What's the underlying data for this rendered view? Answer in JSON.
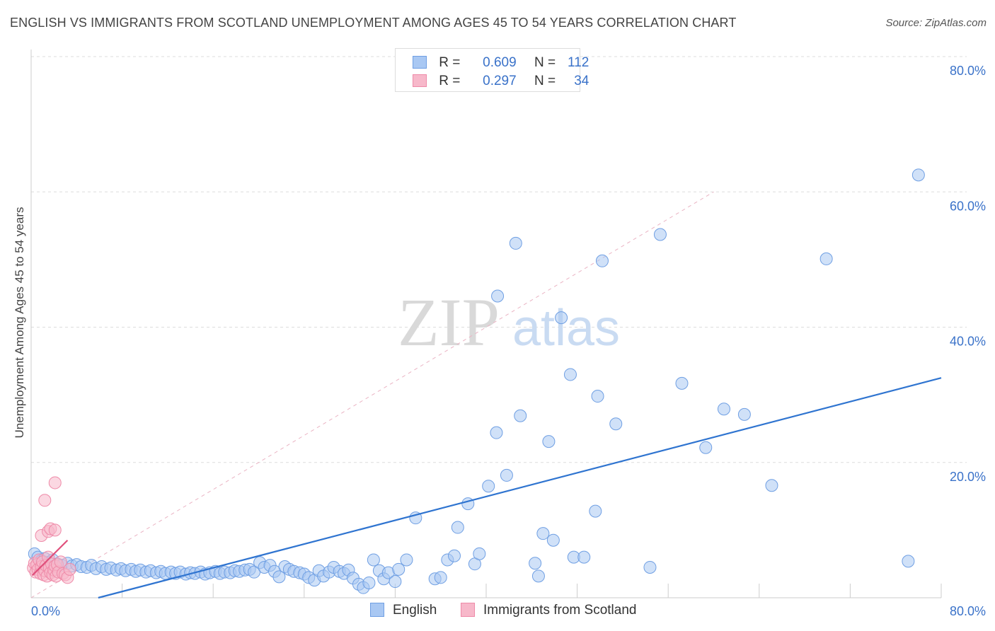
{
  "title": "ENGLISH VS IMMIGRANTS FROM SCOTLAND UNEMPLOYMENT AMONG AGES 45 TO 54 YEARS CORRELATION CHART",
  "source": "Source: ZipAtlas.com",
  "watermark": {
    "zip": "ZIP",
    "atlas": "atlas"
  },
  "legend": {
    "r_label": "R =",
    "n_label": "N =",
    "english": {
      "r": "0.609",
      "n": "112"
    },
    "scotland": {
      "r": "0.297",
      "n": "34"
    }
  },
  "colors": {
    "english_fill": "#a9c8f3",
    "english_stroke": "#6f9fe3",
    "english_line": "#2f74d0",
    "scotland_fill": "#f7b8ca",
    "scotland_stroke": "#ee8aa8",
    "scotland_line": "#e0507c",
    "grid": "#dddddd",
    "tick_text": "#3a72c9"
  },
  "chart_data": {
    "type": "scatter",
    "title": "ENGLISH VS IMMIGRANTS FROM SCOTLAND UNEMPLOYMENT AMONG AGES 45 TO 54 YEARS CORRELATION CHART",
    "xlabel": "",
    "ylabel": "Unemployment Among Ages 45 to 54 years",
    "xlim": [
      0,
      80
    ],
    "ylim": [
      0,
      80
    ],
    "x_tick_labels": [
      "0.0%",
      "80.0%"
    ],
    "y_ticks": [
      20,
      40,
      60,
      80
    ],
    "y_tick_labels": [
      "20.0%",
      "40.0%",
      "60.0%",
      "80.0%"
    ],
    "grid": true,
    "legend_position": "top-center",
    "series": [
      {
        "name": "English",
        "r": 0.609,
        "n": 112,
        "trend": {
          "x": [
            5.9,
            80
          ],
          "y": [
            0,
            32.5
          ]
        },
        "points": [
          [
            0.3,
            6.5
          ],
          [
            0.6,
            6.0
          ],
          [
            0.9,
            5.5
          ],
          [
            1.2,
            5.8
          ],
          [
            1.5,
            5.2
          ],
          [
            1.9,
            5.6
          ],
          [
            2.3,
            5.0
          ],
          [
            2.7,
            4.8
          ],
          [
            3.2,
            5.1
          ],
          [
            3.6,
            4.7
          ],
          [
            4.0,
            4.9
          ],
          [
            4.4,
            4.6
          ],
          [
            4.9,
            4.5
          ],
          [
            5.3,
            4.8
          ],
          [
            5.7,
            4.3
          ],
          [
            6.2,
            4.6
          ],
          [
            6.6,
            4.2
          ],
          [
            7.0,
            4.4
          ],
          [
            7.5,
            4.1
          ],
          [
            7.9,
            4.3
          ],
          [
            8.3,
            4.0
          ],
          [
            8.8,
            4.2
          ],
          [
            9.2,
            3.9
          ],
          [
            9.6,
            4.1
          ],
          [
            10.1,
            3.8
          ],
          [
            10.5,
            4.0
          ],
          [
            11.0,
            3.7
          ],
          [
            11.4,
            3.9
          ],
          [
            11.8,
            3.6
          ],
          [
            12.3,
            3.8
          ],
          [
            12.7,
            3.6
          ],
          [
            13.1,
            3.8
          ],
          [
            13.6,
            3.5
          ],
          [
            14.0,
            3.7
          ],
          [
            14.4,
            3.6
          ],
          [
            14.9,
            3.8
          ],
          [
            15.3,
            3.5
          ],
          [
            15.7,
            3.7
          ],
          [
            16.2,
            3.9
          ],
          [
            16.6,
            3.6
          ],
          [
            17.0,
            3.8
          ],
          [
            17.5,
            3.7
          ],
          [
            17.9,
            4.0
          ],
          [
            18.3,
            3.9
          ],
          [
            18.8,
            4.1
          ],
          [
            19.2,
            4.2
          ],
          [
            19.6,
            3.8
          ],
          [
            20.1,
            5.2
          ],
          [
            20.5,
            4.5
          ],
          [
            21.0,
            4.8
          ],
          [
            21.4,
            3.9
          ],
          [
            21.8,
            3.1
          ],
          [
            22.3,
            4.6
          ],
          [
            22.7,
            4.2
          ],
          [
            23.1,
            3.9
          ],
          [
            23.6,
            3.7
          ],
          [
            24.0,
            3.5
          ],
          [
            24.4,
            3.0
          ],
          [
            24.9,
            2.6
          ],
          [
            25.3,
            4.0
          ],
          [
            25.7,
            3.2
          ],
          [
            26.2,
            3.8
          ],
          [
            26.6,
            4.5
          ],
          [
            27.1,
            3.9
          ],
          [
            27.5,
            3.6
          ],
          [
            27.9,
            4.1
          ],
          [
            28.3,
            2.9
          ],
          [
            28.8,
            2.0
          ],
          [
            29.2,
            1.5
          ],
          [
            29.7,
            2.2
          ],
          [
            30.1,
            5.6
          ],
          [
            30.6,
            4.0
          ],
          [
            31.0,
            2.8
          ],
          [
            31.4,
            3.7
          ],
          [
            32.0,
            2.4
          ],
          [
            32.3,
            4.2
          ],
          [
            33.0,
            5.6
          ],
          [
            33.8,
            11.8
          ],
          [
            35.5,
            2.8
          ],
          [
            36.0,
            3.0
          ],
          [
            36.6,
            5.6
          ],
          [
            37.2,
            6.2
          ],
          [
            37.5,
            10.4
          ],
          [
            38.4,
            13.9
          ],
          [
            39.0,
            5.0
          ],
          [
            39.4,
            6.5
          ],
          [
            40.2,
            16.5
          ],
          [
            40.9,
            24.4
          ],
          [
            41.0,
            44.6
          ],
          [
            41.8,
            18.1
          ],
          [
            42.6,
            52.4
          ],
          [
            43.0,
            26.9
          ],
          [
            44.3,
            5.1
          ],
          [
            44.6,
            3.2
          ],
          [
            45.0,
            9.5
          ],
          [
            45.5,
            23.1
          ],
          [
            45.9,
            8.5
          ],
          [
            46.6,
            41.4
          ],
          [
            47.4,
            33.0
          ],
          [
            47.7,
            6.0
          ],
          [
            48.6,
            6.0
          ],
          [
            49.6,
            12.8
          ],
          [
            49.8,
            29.8
          ],
          [
            50.2,
            49.8
          ],
          [
            51.4,
            25.7
          ],
          [
            54.4,
            4.5
          ],
          [
            55.3,
            53.7
          ],
          [
            57.2,
            31.7
          ],
          [
            59.3,
            22.2
          ],
          [
            60.9,
            27.9
          ],
          [
            62.7,
            27.1
          ],
          [
            65.1,
            16.6
          ],
          [
            69.9,
            50.1
          ],
          [
            77.1,
            5.4
          ],
          [
            78.0,
            62.5
          ]
        ]
      },
      {
        "name": "Immigrants from Scotland",
        "r": 0.297,
        "n": 34,
        "trend": {
          "x": [
            0.1,
            3.2
          ],
          "y": [
            3.3,
            8.5
          ]
        },
        "points": [
          [
            0.2,
            4.4
          ],
          [
            0.3,
            5.1
          ],
          [
            0.4,
            3.8
          ],
          [
            0.5,
            4.9
          ],
          [
            0.6,
            4.2
          ],
          [
            0.7,
            5.6
          ],
          [
            0.8,
            3.6
          ],
          [
            0.9,
            4.6
          ],
          [
            1.0,
            5.3
          ],
          [
            1.1,
            3.4
          ],
          [
            1.2,
            4.0
          ],
          [
            1.3,
            4.8
          ],
          [
            1.4,
            3.2
          ],
          [
            1.5,
            6.0
          ],
          [
            1.6,
            4.4
          ],
          [
            1.7,
            3.7
          ],
          [
            1.8,
            5.0
          ],
          [
            1.9,
            3.4
          ],
          [
            2.0,
            4.1
          ],
          [
            2.1,
            4.7
          ],
          [
            2.2,
            3.2
          ],
          [
            2.3,
            4.9
          ],
          [
            2.4,
            3.8
          ],
          [
            2.6,
            5.3
          ],
          [
            2.8,
            3.6
          ],
          [
            3.0,
            3.4
          ],
          [
            3.2,
            3.0
          ],
          [
            3.4,
            4.2
          ],
          [
            0.9,
            9.2
          ],
          [
            1.2,
            14.4
          ],
          [
            1.5,
            9.8
          ],
          [
            1.7,
            10.2
          ],
          [
            2.1,
            10.0
          ],
          [
            2.1,
            17.0
          ]
        ]
      }
    ]
  }
}
